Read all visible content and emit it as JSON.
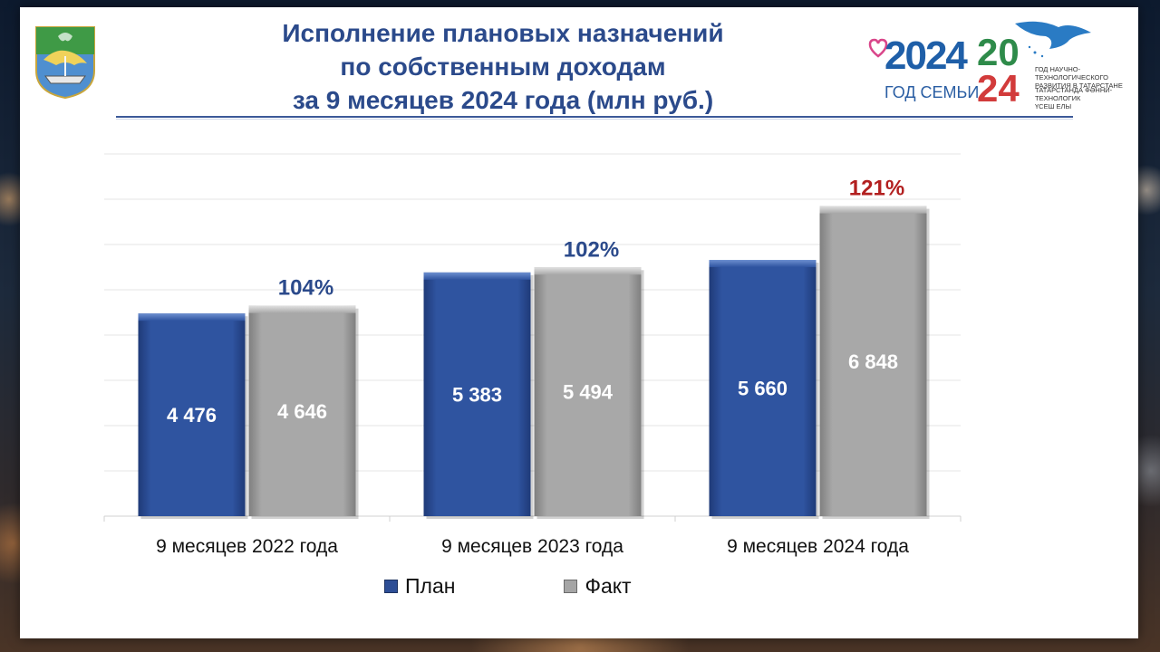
{
  "slide": {
    "title": "Исполнение  плановых назначений\nпо собственным доходам\nза 9 месяцев 2024 года (млн руб.)"
  },
  "logo": {
    "year": "2024",
    "subtitle": "ГОД СЕМЬИ",
    "year_top": "20",
    "year_bottom": "24",
    "caption_ru": "ГОД НАУЧНО-ТЕХНОЛОГИЧЕСКОГО\nРАЗВИТИЯ В ТАТАРСТАНЕ",
    "caption_tt": "ТАТАРСТАНДА ФӘННИ-ТЕХНОЛОГИК\nҮСЕШ ЕЛЫ"
  },
  "colors": {
    "title": "#2b4a8b",
    "plan": "#2d4e96",
    "fact": "#a5a5a5",
    "pct_normal": "#2b4a8b",
    "pct_highlight": "#b21f1f"
  },
  "chart_data": {
    "type": "bar",
    "categories": [
      "9 месяцев 2022 года",
      "9 месяцев 2023 года",
      "9 месяцев 2024 года"
    ],
    "series": [
      {
        "name": "План",
        "values": [
          4476,
          5383,
          5660
        ],
        "labels": [
          "4 476",
          "5 383",
          "5 660"
        ],
        "color": "#2d4e96"
      },
      {
        "name": "Факт",
        "values": [
          4646,
          5494,
          6848
        ],
        "labels": [
          "4 646",
          "5 494",
          "6 848"
        ],
        "color": "#a5a5a5"
      }
    ],
    "annotations": [
      {
        "category": 0,
        "text": "104%",
        "highlight": false
      },
      {
        "category": 1,
        "text": "102%",
        "highlight": false
      },
      {
        "category": 2,
        "text": "121%",
        "highlight": true
      }
    ],
    "ylim": [
      0,
      8000
    ],
    "grid": true,
    "legend": "bottom-center",
    "xlabel": "",
    "ylabel": ""
  }
}
